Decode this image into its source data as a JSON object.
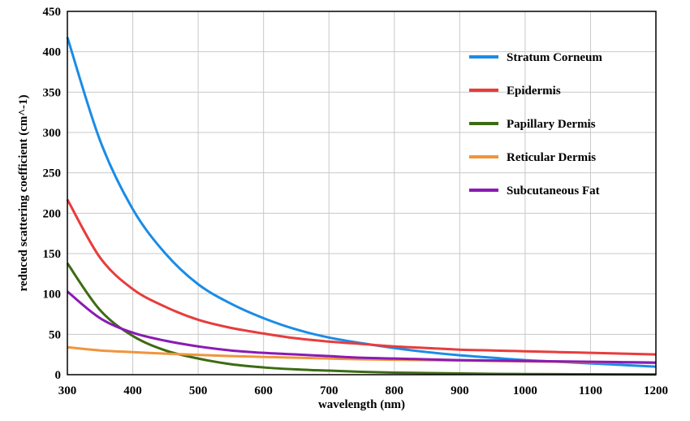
{
  "chart_data": {
    "type": "line",
    "title": "",
    "xlabel": "wavelength (nm)",
    "ylabel": "reduced scattering coefficient (cm^-1)",
    "xlim": [
      300,
      1200
    ],
    "ylim": [
      0,
      450
    ],
    "xticks": [
      300,
      400,
      500,
      600,
      700,
      800,
      900,
      1000,
      1100,
      1200
    ],
    "yticks": [
      0,
      50,
      100,
      150,
      200,
      250,
      300,
      350,
      400,
      450
    ],
    "grid": true,
    "legend_position": "top-right",
    "x": [
      300,
      350,
      400,
      450,
      500,
      550,
      600,
      650,
      700,
      750,
      800,
      850,
      900,
      950,
      1000,
      1050,
      1100,
      1150,
      1200
    ],
    "series": [
      {
        "name": "Stratum Corneum",
        "color": "#1a8ce6",
        "values": [
          418,
          290,
          205,
          150,
          112,
          88,
          70,
          56,
          46,
          39,
          33,
          28,
          24,
          21,
          18,
          16,
          14,
          12,
          10
        ]
      },
      {
        "name": "Epidermis",
        "color": "#e83c3c",
        "values": [
          217,
          145,
          106,
          84,
          68,
          58,
          51,
          45,
          41,
          38,
          35,
          33,
          31,
          30,
          29,
          28,
          27,
          26,
          25
        ]
      },
      {
        "name": "Papillary Dermis",
        "color": "#3d6b12",
        "values": [
          138,
          80,
          48,
          30,
          20,
          13,
          9,
          6.5,
          5,
          3.5,
          2.5,
          2,
          1.5,
          1,
          0.8,
          0.6,
          0.5,
          0.4,
          0.3
        ]
      },
      {
        "name": "Reticular Dermis",
        "color": "#f0953c",
        "values": [
          34,
          30,
          28,
          26,
          24.5,
          23,
          22,
          21,
          20,
          19,
          18.5,
          18,
          17.5,
          17,
          16.5,
          16,
          15.5,
          15,
          14.5
        ]
      },
      {
        "name": "Subcutaneous Fat",
        "color": "#8a1ab5",
        "values": [
          103,
          70,
          52,
          42,
          35,
          30,
          27,
          25,
          23,
          21,
          20,
          19,
          18,
          17.5,
          17,
          16.5,
          16,
          15.5,
          15
        ]
      }
    ]
  }
}
